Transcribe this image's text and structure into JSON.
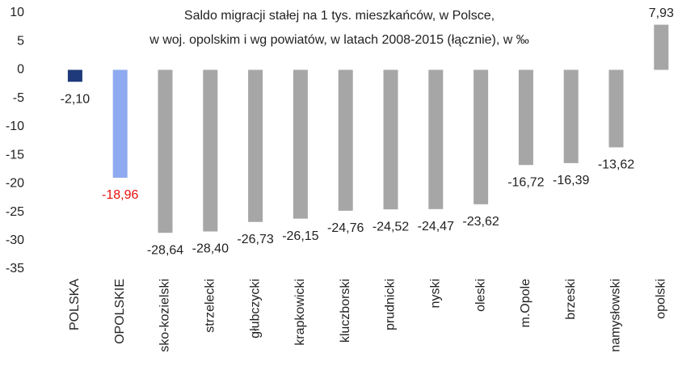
{
  "chart_data": {
    "type": "bar",
    "title": [
      "Saldo migracji stałej na 1 tys. mieszkańców, w Polsce,",
      "w woj. opolskim i wg powiatów, w latach 2008-2015 (łącznie), w ‰"
    ],
    "categories": [
      "POLSKA",
      "OPOLSKIE",
      "sko-kozielski",
      "strzelecki",
      "głubczycki",
      "krapkowicki",
      "kluczborski",
      "prudnicki",
      "nyski",
      "oleski",
      "m.Opole",
      "brzeski",
      "namysłowski",
      "opolski"
    ],
    "values": [
      -2.1,
      -18.96,
      -28.64,
      -28.4,
      -26.73,
      -26.15,
      -24.76,
      -24.52,
      -24.47,
      -23.62,
      -16.72,
      -16.39,
      -13.62,
      7.93
    ],
    "value_labels": [
      "-2,10",
      "-18,96",
      "-28,64",
      "-28,40",
      "-26,73",
      "-26,15",
      "-24,76",
      "-24,52",
      "-24,47",
      "-23,62",
      "-16,72",
      "-16,39",
      "-13,62",
      "7,93"
    ],
    "colors": [
      "#1f3a7a",
      "#8eaaf0",
      "#a6a6a6",
      "#a6a6a6",
      "#a6a6a6",
      "#a6a6a6",
      "#a6a6a6",
      "#a6a6a6",
      "#a6a6a6",
      "#a6a6a6",
      "#a6a6a6",
      "#a6a6a6",
      "#a6a6a6",
      "#a6a6a6"
    ],
    "value_label_colors": [
      "#222",
      "#e81010",
      "#222",
      "#222",
      "#222",
      "#222",
      "#222",
      "#222",
      "#222",
      "#222",
      "#222",
      "#222",
      "#222",
      "#222"
    ],
    "ylim": [
      -35,
      10
    ],
    "yticks": [
      10,
      5,
      0,
      -5,
      -10,
      -15,
      -20,
      -25,
      -30,
      -35
    ]
  }
}
